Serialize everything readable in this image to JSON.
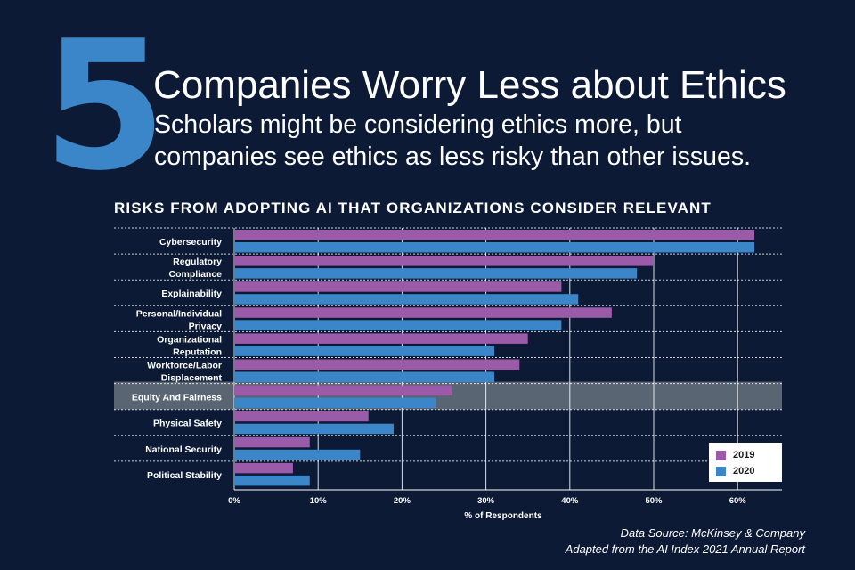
{
  "header": {
    "number": "5",
    "title": "Companies Worry Less about Ethics",
    "subtitle_line1": "Scholars might be considering ethics more, but",
    "subtitle_line2": "companies see ethics as less risky than other issues."
  },
  "colors": {
    "background": "#0c1a35",
    "accent": "#3a86c8",
    "series_2019": "#9b5ba9",
    "series_2020": "#3a86c8",
    "highlight": "#5a6574"
  },
  "chart_data": {
    "type": "bar",
    "orientation": "horizontal",
    "title": "RISKS FROM ADOPTING AI THAT ORGANIZATIONS CONSIDER RELEVANT",
    "xlabel": "% of Respondents",
    "xlim": [
      0,
      65
    ],
    "xticks": [
      "0%",
      "10%",
      "20%",
      "30%",
      "40%",
      "50%",
      "60%"
    ],
    "grid": true,
    "legend_position": "bottom-right",
    "highlighted_category": "Equity And Fairness",
    "categories": [
      [
        "Cybersecurity"
      ],
      [
        "Regulatory",
        "Compliance"
      ],
      [
        "Explainability"
      ],
      [
        "Personal/Individual",
        "Privacy"
      ],
      [
        "Organizational",
        "Reputation"
      ],
      [
        "Workforce/Labor",
        "Displacement"
      ],
      [
        "Equity And Fairness"
      ],
      [
        "Physical Safety"
      ],
      [
        "National Security"
      ],
      [
        "Political Stability"
      ]
    ],
    "series": [
      {
        "name": "2019",
        "values": [
          62,
          50,
          39,
          45,
          35,
          34,
          26,
          16,
          9,
          7
        ]
      },
      {
        "name": "2020",
        "values": [
          62,
          48,
          41,
          39,
          31,
          31,
          24,
          19,
          15,
          9
        ]
      }
    ]
  },
  "footer": {
    "source": "Data Source: McKinsey & Company",
    "adapted": "Adapted from the AI Index 2021 Annual Report"
  }
}
